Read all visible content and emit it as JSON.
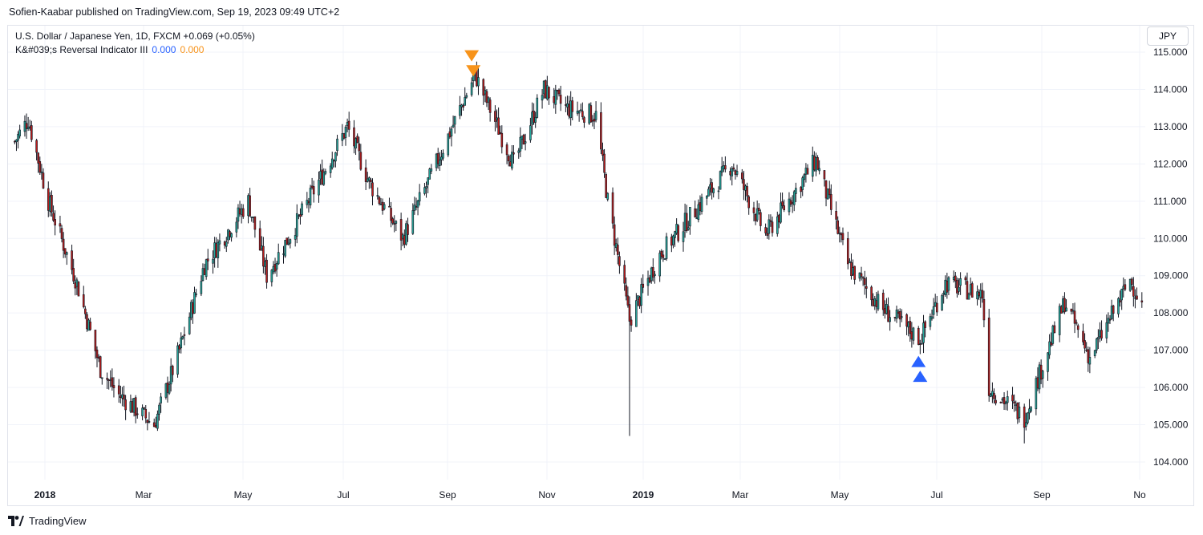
{
  "header": {
    "publisher_line": "Sofien-Kaabar published on TradingView.com, Sep 19, 2023 09:49 UTC+2"
  },
  "legend": {
    "symbol_line": "U.S. Dollar / Japanese Yen, 1D, FXCM  +0.069 (+0.05%)",
    "indicator_name": "K&#039;s Reversal Indicator III",
    "value_1": "0.000",
    "value_2": "0.000"
  },
  "currency_button": "JPY",
  "footer": {
    "brand": "TradingView"
  },
  "colors": {
    "up": "#26a69a",
    "down": "#b71c1c",
    "wick": "#131722",
    "bull_signal": "#2962ff",
    "bear_signal": "#f7931a",
    "grid": "#f0f3fa"
  },
  "chart_data": {
    "type": "candlestick",
    "title": "U.S. Dollar / Japanese Yen, 1D, FXCM",
    "y_axis": {
      "ticks": [
        "115.000",
        "114.000",
        "113.000",
        "112.000",
        "111.000",
        "110.000",
        "109.000",
        "108.000",
        "107.000",
        "106.000",
        "105.000",
        "104.000"
      ],
      "range": [
        103.5,
        115.4
      ]
    },
    "x_axis": {
      "ticks": [
        {
          "label": "2018",
          "bold": true
        },
        {
          "label": "Mar",
          "bold": false
        },
        {
          "label": "May",
          "bold": false
        },
        {
          "label": "Jul",
          "bold": false
        },
        {
          "label": "Sep",
          "bold": false
        },
        {
          "label": "Nov",
          "bold": false
        },
        {
          "label": "2019",
          "bold": true
        },
        {
          "label": "Mar",
          "bold": false
        },
        {
          "label": "May",
          "bold": false
        },
        {
          "label": "Jul",
          "bold": false
        },
        {
          "label": "Sep",
          "bold": false
        },
        {
          "label": "No",
          "bold": false
        }
      ]
    },
    "close_path": [
      {
        "date": "2018-01-02",
        "close": 112.6
      },
      {
        "date": "2018-01-10",
        "close": 113.2
      },
      {
        "date": "2018-01-22",
        "close": 111.0
      },
      {
        "date": "2018-02-08",
        "close": 108.8
      },
      {
        "date": "2018-02-22",
        "close": 106.5
      },
      {
        "date": "2018-03-05",
        "close": 105.8
      },
      {
        "date": "2018-03-26",
        "close": 105.0
      },
      {
        "date": "2018-04-10",
        "close": 107.0
      },
      {
        "date": "2018-04-25",
        "close": 109.3
      },
      {
        "date": "2018-05-21",
        "close": 111.0
      },
      {
        "date": "2018-06-01",
        "close": 109.0
      },
      {
        "date": "2018-06-20",
        "close": 110.5
      },
      {
        "date": "2018-07-19",
        "close": 113.0
      },
      {
        "date": "2018-08-01",
        "close": 111.5
      },
      {
        "date": "2018-08-21",
        "close": 110.0
      },
      {
        "date": "2018-09-05",
        "close": 111.5
      },
      {
        "date": "2018-10-03",
        "close": 114.4
      },
      {
        "date": "2018-10-26",
        "close": 112.0
      },
      {
        "date": "2018-11-13",
        "close": 114.0
      },
      {
        "date": "2018-11-26",
        "close": 113.5
      },
      {
        "date": "2018-12-14",
        "close": 113.3
      },
      {
        "date": "2018-12-21",
        "close": 111.0
      },
      {
        "date": "2019-01-03",
        "close": 107.8
      },
      {
        "date": "2019-01-20",
        "close": 109.5
      },
      {
        "date": "2019-03-05",
        "close": 112.0
      },
      {
        "date": "2019-03-25",
        "close": 110.1
      },
      {
        "date": "2019-04-24",
        "close": 112.1
      },
      {
        "date": "2019-05-13",
        "close": 109.3
      },
      {
        "date": "2019-06-03",
        "close": 108.1
      },
      {
        "date": "2019-06-25",
        "close": 107.3
      },
      {
        "date": "2019-07-10",
        "close": 108.8
      },
      {
        "date": "2019-08-01",
        "close": 108.5
      },
      {
        "date": "2019-08-05",
        "close": 106.0
      },
      {
        "date": "2019-08-26",
        "close": 105.2
      },
      {
        "date": "2019-09-19",
        "close": 108.3
      },
      {
        "date": "2019-10-04",
        "close": 106.8
      },
      {
        "date": "2019-10-28",
        "close": 108.9
      },
      {
        "date": "2019-11-04",
        "close": 108.2
      }
    ],
    "extreme_wicks": [
      {
        "date": "2019-01-03",
        "low": 104.7
      },
      {
        "date": "2019-08-26",
        "low": 104.5
      },
      {
        "date": "2018-10-03",
        "high": 114.6
      }
    ],
    "signals": [
      {
        "type": "bearish",
        "date": "2018-10-01",
        "value": 114.9
      },
      {
        "type": "bearish",
        "date": "2018-10-02",
        "value": 114.5
      },
      {
        "type": "bullish",
        "date": "2019-06-24",
        "value": 106.7
      },
      {
        "type": "bullish",
        "date": "2019-06-25",
        "value": 106.3
      }
    ]
  }
}
